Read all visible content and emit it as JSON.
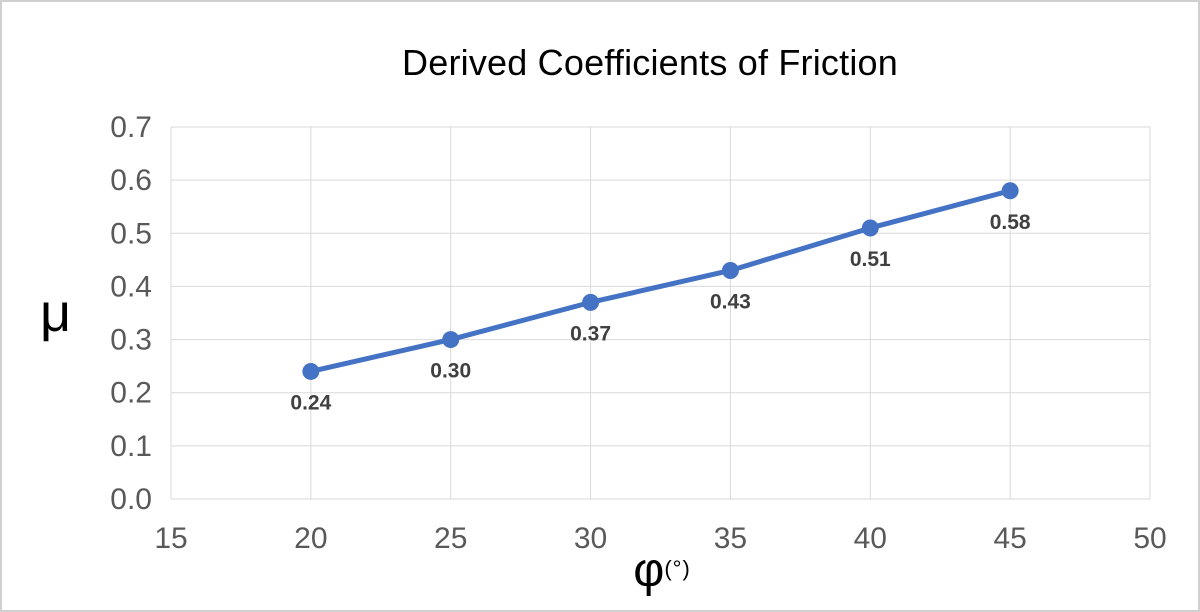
{
  "chart_data": {
    "type": "line",
    "title": "Derived Coefficients of Friction",
    "ylabel": "μ",
    "xlabel": "φ",
    "xlabel_unit": "(°)",
    "x": [
      20,
      25,
      30,
      35,
      40,
      45
    ],
    "y": [
      0.24,
      0.3,
      0.37,
      0.43,
      0.51,
      0.58
    ],
    "data_labels": [
      "0.24",
      "0.30",
      "0.37",
      "0.43",
      "0.51",
      "0.58"
    ],
    "xlim": [
      15,
      50
    ],
    "ylim": [
      0.0,
      0.7
    ],
    "x_tick_labels": [
      "15",
      "20",
      "25",
      "30",
      "35",
      "40",
      "45",
      "50"
    ],
    "y_tick_labels": [
      "0.0",
      "0.1",
      "0.2",
      "0.3",
      "0.4",
      "0.5",
      "0.6",
      "0.7"
    ],
    "grid": true,
    "legend": false,
    "colors": {
      "line": "#4472C4",
      "marker": "#4472C4",
      "gridline": "#D9D9D9",
      "tick_label": "#595959",
      "data_label": "#404040",
      "title": "#000000",
      "background": "#FFFFFF",
      "canvas_border": "#D0D0D0"
    }
  }
}
